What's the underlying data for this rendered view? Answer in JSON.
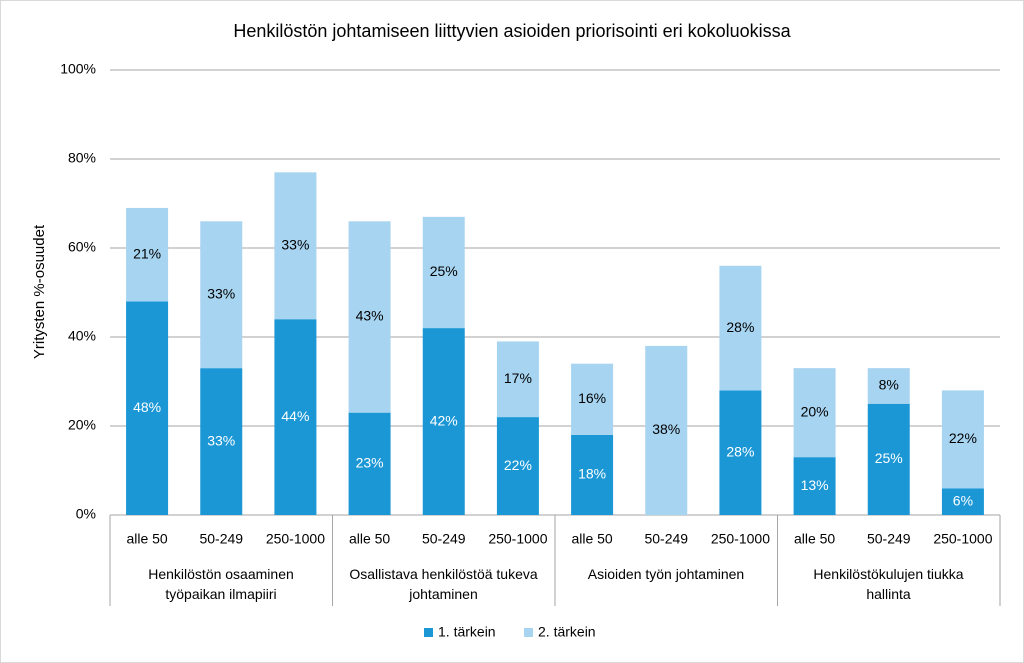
{
  "chart_data": {
    "type": "bar",
    "stacked": true,
    "title": "Henkilöstön johtamiseen liittyvien asioiden priorisointi eri kokoluokissa",
    "y_label": "Yritysten %-osuudet",
    "categories": [
      "alle 50",
      "50-249",
      "250-1000",
      "alle 50",
      "50-249",
      "250-1000",
      "alle 50",
      "50-249",
      "250-1000",
      "alle 50",
      "50-249",
      "250-1000"
    ],
    "group_labels": [
      "Henkilöstön osaaminen\ntyöpaikan ilmapiiri",
      "Osallistava henkilöstöä tukeva\njohtaminen",
      "Asioiden työn johtaminen",
      "Henkilöstökulujen tiukka\nhallinta"
    ],
    "series": [
      {
        "name": "1. tärkein",
        "color": "#1b97d5",
        "label_color": "#ffffff",
        "values": [
          48,
          33,
          44,
          23,
          42,
          22,
          18,
          null,
          28,
          13,
          25,
          6
        ],
        "value_labels": [
          "48%",
          "33%",
          "44%",
          "23%",
          "42%",
          "22%",
          "18%",
          null,
          "28%",
          "13%",
          "25%",
          "6%"
        ]
      },
      {
        "name": "2. tärkein",
        "color": "#a7d4f1",
        "label_color": "#000000",
        "values": [
          21,
          33,
          33,
          43,
          25,
          17,
          16,
          38,
          28,
          20,
          8,
          22
        ],
        "value_labels": [
          "21%",
          "33%",
          "33%",
          "43%",
          "25%",
          "17%",
          "16%",
          "38%",
          "28%",
          "20%",
          "8%",
          "22%"
        ]
      }
    ],
    "ylim": [
      0,
      100
    ],
    "yticks": [
      {
        "value": 0,
        "label": "0%"
      },
      {
        "value": 20,
        "label": "20%"
      },
      {
        "value": 40,
        "label": "40%"
      },
      {
        "value": 60,
        "label": "60%"
      },
      {
        "value": 80,
        "label": "80%"
      },
      {
        "value": 100,
        "label": "100%"
      }
    ],
    "grid": true,
    "legend": "bottom"
  }
}
